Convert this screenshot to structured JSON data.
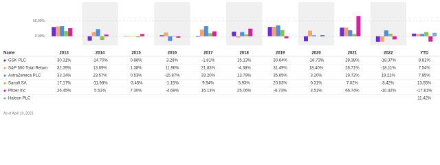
{
  "chart_data": {
    "type": "bar",
    "name_header": "Name",
    "categories": [
      "2013",
      "2014",
      "2015",
      "2016",
      "2017",
      "2018",
      "2019",
      "2020",
      "2021",
      "2022",
      "YTD"
    ],
    "ylim": [
      -30,
      112.5
    ],
    "yticks": [
      {
        "value": 50,
        "label": "50.00%"
      },
      {
        "value": 0,
        "label": "0.00%"
      }
    ],
    "grid": true,
    "series": [
      {
        "name": "GSK PLC",
        "color": "#6a2bd9",
        "values": [
          30.31,
          -14.7,
          0.86,
          3.28,
          -1.81,
          15.13,
          30.64,
          -16.73,
          28.38,
          -18.37,
          8.81
        ],
        "value_labels": [
          "30.31%",
          "-14.70%",
          "0.86%",
          "3.28%",
          "-1.81%",
          "15.13%",
          "30.64%",
          "-16.73%",
          "28.38%",
          "-18.37%",
          "8.81%"
        ]
      },
      {
        "name": "S&P 500 Total Return",
        "color": "#f5a46c",
        "values": [
          32.39,
          13.69,
          1.38,
          11.96,
          21.83,
          -4.38,
          31.49,
          18.4,
          28.71,
          -18.11,
          7.54
        ],
        "value_labels": [
          "32.39%",
          "13.69%",
          "1.38%",
          "11.96%",
          "21.83%",
          "-4.38%",
          "31.49%",
          "18.40%",
          "28.71%",
          "-18.11%",
          "7.54%"
        ]
      },
      {
        "name": "AstraZeneca PLC",
        "color": "#4a90e2",
        "values": [
          33.14,
          23.57,
          0.53,
          -15.87,
          33.2,
          13.79,
          35.65,
          3.2,
          19.72,
          19.22,
          7.85
        ],
        "value_labels": [
          "33.14%",
          "23.57%",
          "0.53%",
          "-15.87%",
          "33.20%",
          "13.79%",
          "35.65%",
          "3.20%",
          "19.72%",
          "19.22%",
          "7.85%"
        ]
      },
      {
        "name": "Sanofi SA",
        "color": "#8bc34a",
        "values": [
          17.17,
          -11.98,
          -3.45,
          -1.15,
          9.94,
          5.93,
          20.53,
          0.31,
          7.02,
          8.42,
          13.55
        ],
        "value_labels": [
          "17.17%",
          "-11.98%",
          "-3.45%",
          "-1.15%",
          "9.94%",
          "5.93%",
          "20.53%",
          "0.31%",
          "7.02%",
          "8.42%",
          "13.55%"
        ]
      },
      {
        "name": "Pfizer Inc",
        "color": "#d61f9c",
        "values": [
          26.45,
          5.51,
          7.3,
          -4.68,
          16.13,
          25.06,
          -6.73,
          3.51,
          66.74,
          -10.42,
          -17.81
        ],
        "value_labels": [
          "26.45%",
          "5.51%",
          "7.30%",
          "-4.68%",
          "16.13%",
          "25.06%",
          "-6.73%",
          "3.51%",
          "66.74%",
          "-10.42%",
          "-17.81%"
        ]
      },
      {
        "name": "Haleon PLC",
        "color": "#7fa7d9",
        "values": [
          null,
          null,
          null,
          null,
          null,
          null,
          null,
          null,
          null,
          null,
          11.42
        ],
        "value_labels": [
          null,
          null,
          null,
          null,
          null,
          null,
          null,
          null,
          null,
          null,
          "11.42%"
        ]
      }
    ],
    "footnote": "As of April 10, 2023."
  }
}
